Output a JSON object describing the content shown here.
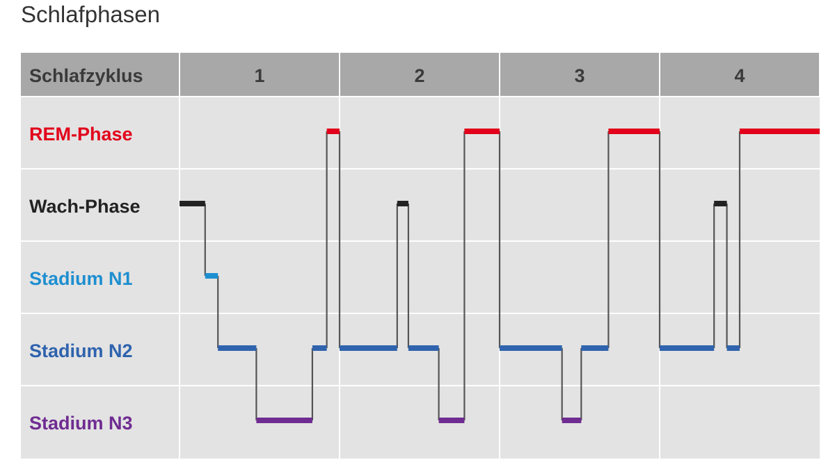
{
  "title": "Schlafphasen",
  "chart_data": {
    "type": "line",
    "title": "Schlafphasen",
    "header_label": "Schlafzyklus",
    "cycles": [
      "1",
      "2",
      "3",
      "4"
    ],
    "stages": [
      {
        "label": "REM-Phase",
        "color": "#e2001a"
      },
      {
        "label": "Wach-Phase",
        "color": "#222222"
      },
      {
        "label": "Stadium N1",
        "color": "#1e8fd0"
      },
      {
        "label": "Stadium N2",
        "color": "#2f63ad"
      },
      {
        "label": "Stadium N3",
        "color": "#6f2c91"
      }
    ],
    "connector_color": "#555555",
    "x_range": [
      0,
      4
    ],
    "segments": [
      {
        "stage": "Wach-Phase",
        "x0": 0.0,
        "x1": 0.16
      },
      {
        "stage": "Stadium N1",
        "x0": 0.16,
        "x1": 0.24
      },
      {
        "stage": "Stadium N2",
        "x0": 0.24,
        "x1": 0.48
      },
      {
        "stage": "Stadium N3",
        "x0": 0.48,
        "x1": 0.83
      },
      {
        "stage": "Stadium N2",
        "x0": 0.83,
        "x1": 0.92
      },
      {
        "stage": "REM-Phase",
        "x0": 0.92,
        "x1": 1.0
      },
      {
        "stage": "Stadium N2",
        "x0": 1.0,
        "x1": 1.36
      },
      {
        "stage": "Wach-Phase",
        "x0": 1.36,
        "x1": 1.43
      },
      {
        "stage": "Stadium N2",
        "x0": 1.43,
        "x1": 1.62
      },
      {
        "stage": "Stadium N3",
        "x0": 1.62,
        "x1": 1.78
      },
      {
        "stage": "REM-Phase",
        "x0": 1.78,
        "x1": 2.0
      },
      {
        "stage": "Stadium N2",
        "x0": 2.0,
        "x1": 2.39
      },
      {
        "stage": "Stadium N3",
        "x0": 2.39,
        "x1": 2.51
      },
      {
        "stage": "Stadium N2",
        "x0": 2.51,
        "x1": 2.68
      },
      {
        "stage": "REM-Phase",
        "x0": 2.68,
        "x1": 3.0
      },
      {
        "stage": "Stadium N2",
        "x0": 3.0,
        "x1": 3.34
      },
      {
        "stage": "Wach-Phase",
        "x0": 3.34,
        "x1": 3.42
      },
      {
        "stage": "Stadium N2",
        "x0": 3.42,
        "x1": 3.5
      },
      {
        "stage": "REM-Phase",
        "x0": 3.5,
        "x1": 4.0
      }
    ]
  }
}
